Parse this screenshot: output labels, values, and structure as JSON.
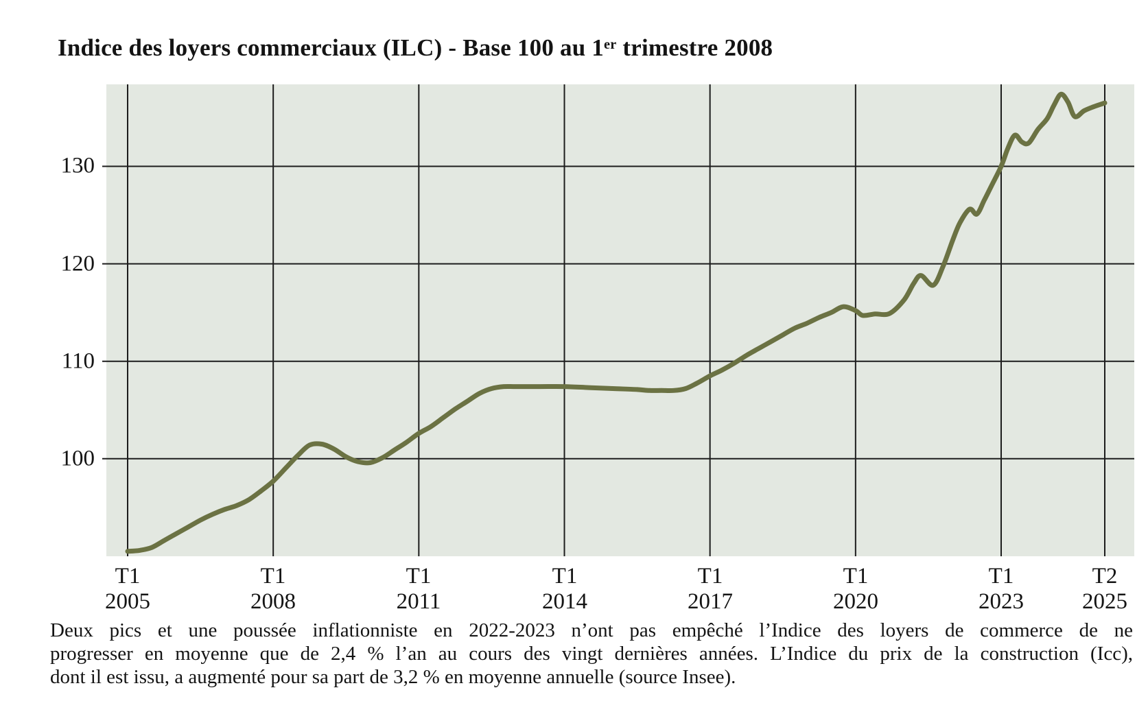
{
  "title": {
    "prefix": "Indice des loyers commerciaux (ILC) - Base 100 au 1",
    "superscript": "er",
    "suffix": " trimestre 2008"
  },
  "caption": {
    "line1": "Deux pics et une poussée inflationniste en 2022-2023 n’ont pas empêché l’Indice des loyers de commerce de ne",
    "line2": "progresser en moyenne que de 2,4 % l’an au cours des vingt dernières années. L’Indice du prix de la construction (Icc),",
    "line3": "dont il est issu, a augmenté pour sa part de 3,2 % en moyenne annuelle (source Insee)."
  },
  "colors": {
    "line": "#6b7243",
    "plot_bg": "#e3e8e1",
    "grid": "#1c1c1c",
    "text": "#141414",
    "page_bg": "#ffffff"
  },
  "chart_data": {
    "type": "line",
    "title": "Indice des loyers commerciaux (ILC) - Base 100 au 1er trimestre 2008",
    "series_name": "ILC",
    "xlabel": "",
    "ylabel": "",
    "grid": true,
    "legend": false,
    "xlim": [
      2005,
      2025.25
    ],
    "ylim": [
      90,
      138.4
    ],
    "y_ticks": [
      100,
      110,
      120,
      130
    ],
    "x_ticks": [
      {
        "top": "T1",
        "bottom": "2005",
        "t": 2005
      },
      {
        "top": "T1",
        "bottom": "2008",
        "t": 2008
      },
      {
        "top": "T1",
        "bottom": "2011",
        "t": 2011
      },
      {
        "top": "T1",
        "bottom": "2014",
        "t": 2014
      },
      {
        "top": "T1",
        "bottom": "2017",
        "t": 2017
      },
      {
        "top": "T1",
        "bottom": "2020",
        "t": 2020
      },
      {
        "top": "T1",
        "bottom": "2023",
        "t": 2023
      },
      {
        "top": "T2",
        "bottom": "2025",
        "t": 2025.25
      }
    ],
    "points": [
      [
        2005.0,
        90.5
      ],
      [
        2005.25,
        90.6
      ],
      [
        2005.5,
        90.9
      ],
      [
        2005.75,
        91.6
      ],
      [
        2006.0,
        92.3
      ],
      [
        2006.25,
        93.0
      ],
      [
        2006.5,
        93.7
      ],
      [
        2006.75,
        94.3
      ],
      [
        2007.0,
        94.8
      ],
      [
        2007.25,
        95.2
      ],
      [
        2007.5,
        95.8
      ],
      [
        2007.75,
        96.7
      ],
      [
        2008.0,
        97.7
      ],
      [
        2008.25,
        99.0
      ],
      [
        2008.5,
        100.3
      ],
      [
        2008.75,
        101.4
      ],
      [
        2009.0,
        101.5
      ],
      [
        2009.25,
        101.0
      ],
      [
        2009.5,
        100.2
      ],
      [
        2009.75,
        99.7
      ],
      [
        2010.0,
        99.6
      ],
      [
        2010.25,
        100.1
      ],
      [
        2010.5,
        100.9
      ],
      [
        2010.75,
        101.7
      ],
      [
        2011.0,
        102.6
      ],
      [
        2011.25,
        103.3
      ],
      [
        2011.5,
        104.2
      ],
      [
        2011.75,
        105.1
      ],
      [
        2012.0,
        105.9
      ],
      [
        2012.25,
        106.7
      ],
      [
        2012.5,
        107.2
      ],
      [
        2012.75,
        107.4
      ],
      [
        2013.0,
        107.4
      ],
      [
        2013.5,
        107.4
      ],
      [
        2014.0,
        107.4
      ],
      [
        2014.5,
        107.3
      ],
      [
        2015.0,
        107.2
      ],
      [
        2015.5,
        107.1
      ],
      [
        2015.75,
        107.0
      ],
      [
        2016.0,
        107.0
      ],
      [
        2016.25,
        107.0
      ],
      [
        2016.5,
        107.2
      ],
      [
        2016.75,
        107.8
      ],
      [
        2017.0,
        108.5
      ],
      [
        2017.25,
        109.1
      ],
      [
        2017.5,
        109.8
      ],
      [
        2017.75,
        110.6
      ],
      [
        2018.0,
        111.3
      ],
      [
        2018.25,
        112.0
      ],
      [
        2018.5,
        112.7
      ],
      [
        2018.75,
        113.4
      ],
      [
        2019.0,
        113.9
      ],
      [
        2019.25,
        114.5
      ],
      [
        2019.5,
        115.0
      ],
      [
        2019.75,
        115.6
      ],
      [
        2020.0,
        115.2
      ],
      [
        2020.15,
        114.7
      ],
      [
        2020.4,
        114.85
      ],
      [
        2020.7,
        114.9
      ],
      [
        2021.0,
        116.3
      ],
      [
        2021.2,
        118.0
      ],
      [
        2021.35,
        118.8
      ],
      [
        2021.6,
        117.8
      ],
      [
        2021.8,
        119.7
      ],
      [
        2022.0,
        122.4
      ],
      [
        2022.15,
        124.2
      ],
      [
        2022.35,
        125.6
      ],
      [
        2022.5,
        125.1
      ],
      [
        2022.65,
        126.5
      ],
      [
        2022.8,
        128.0
      ],
      [
        2023.0,
        130.0
      ],
      [
        2023.15,
        131.9
      ],
      [
        2023.3,
        133.2
      ],
      [
        2023.45,
        132.5
      ],
      [
        2023.6,
        132.4
      ],
      [
        2023.8,
        133.8
      ],
      [
        2024.0,
        134.9
      ],
      [
        2024.15,
        136.3
      ],
      [
        2024.3,
        137.4
      ],
      [
        2024.45,
        136.6
      ],
      [
        2024.6,
        135.1
      ],
      [
        2024.8,
        135.7
      ],
      [
        2025.0,
        136.1
      ],
      [
        2025.25,
        136.5
      ]
    ]
  }
}
